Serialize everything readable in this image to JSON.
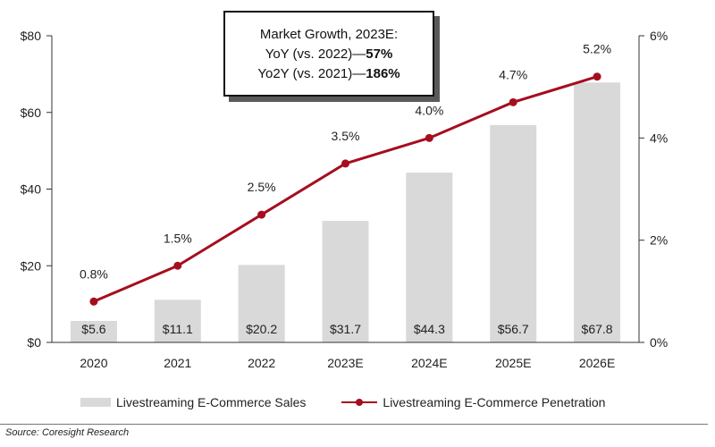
{
  "chart_data": {
    "type": "bar+line",
    "categories": [
      "2020",
      "2021",
      "2022",
      "2023E",
      "2024E",
      "2025E",
      "2026E"
    ],
    "series": [
      {
        "name": "Livestreaming E-Commerce Sales",
        "type": "bar",
        "axis": "left",
        "values": [
          5.6,
          11.1,
          20.2,
          31.7,
          44.3,
          56.7,
          67.8
        ],
        "labels": [
          "$5.6",
          "$11.1",
          "$20.2",
          "$31.7",
          "$44.3",
          "$56.7",
          "$67.8"
        ],
        "color": "#d9d9d9"
      },
      {
        "name": "Livestreaming E-Commerce Penetration",
        "type": "line",
        "axis": "right",
        "values": [
          0.8,
          1.5,
          2.5,
          3.5,
          4.0,
          4.7,
          5.2
        ],
        "labels": [
          "0.8%",
          "1.5%",
          "2.5%",
          "3.5%",
          "4.0%",
          "4.7%",
          "5.2%"
        ],
        "color": "#a50e1f"
      }
    ],
    "y_left": {
      "range": [
        0,
        80
      ],
      "ticks": [
        0,
        20,
        40,
        60,
        80
      ],
      "tick_labels": [
        "$0",
        "$20",
        "$40",
        "$60",
        "$80"
      ]
    },
    "y_right": {
      "range": [
        0,
        6
      ],
      "ticks": [
        0,
        2,
        4,
        6
      ],
      "tick_labels": [
        "0%",
        "2%",
        "4%",
        "6%"
      ]
    },
    "grid": false,
    "legend_position": "bottom"
  },
  "callout": {
    "title": "Market Growth, 2023E:",
    "yoy_label": "YoY (vs. 2022)—",
    "yoy_value": "57%",
    "yo2y_label": "Yo2Y (vs. 2021)—",
    "yo2y_value": "186%"
  },
  "source": "Source: Coresight Research"
}
